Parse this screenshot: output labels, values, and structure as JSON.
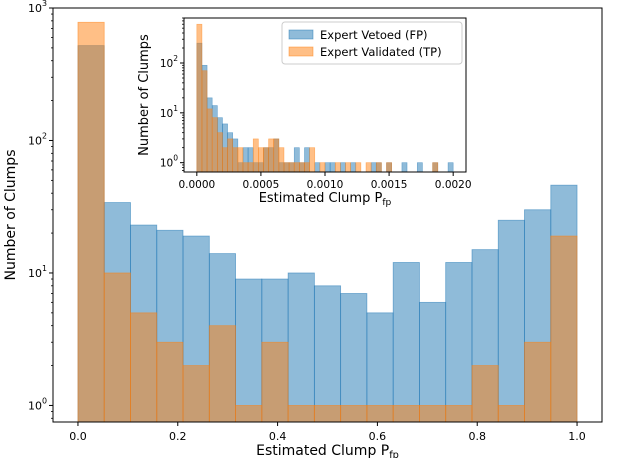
{
  "chart_data": [
    {
      "type": "bar",
      "subtype": "histogram",
      "panel": "main",
      "title": "",
      "xlabel": "Estimated Clump P",
      "xlabel_sub": "fp",
      "ylabel": "Number of Clumps",
      "xscale": "linear",
      "yscale": "log",
      "xlim": [
        -0.05,
        1.05
      ],
      "ylim": [
        0.75,
        1000
      ],
      "xticks": [
        0.0,
        0.2,
        0.4,
        0.6,
        0.8,
        1.0
      ],
      "xtick_labels": [
        "0.0",
        "0.2",
        "0.4",
        "0.6",
        "0.8",
        "1.0"
      ],
      "yticks": [
        1,
        10,
        100,
        1000
      ],
      "ytick_base": "10",
      "ytick_exponents": [
        "0",
        "1",
        "2",
        "3"
      ],
      "bin_edges": [
        0.0,
        0.0526,
        0.1053,
        0.1579,
        0.2105,
        0.2632,
        0.3158,
        0.3684,
        0.4211,
        0.4737,
        0.5263,
        0.5789,
        0.6316,
        0.6842,
        0.7368,
        0.7895,
        0.8421,
        0.8947,
        0.9474,
        1.0
      ],
      "series": [
        {
          "name": "Expert Vetoed (FP)",
          "color": "#1f77b4",
          "alpha": 0.5,
          "values": [
            520,
            34,
            23,
            21,
            19,
            14,
            9,
            9,
            10,
            8,
            7,
            5,
            12,
            6,
            12,
            15,
            25,
            30,
            46
          ]
        },
        {
          "name": "Expert Validated (TP)",
          "color": "#ff7f0e",
          "alpha": 0.5,
          "values": [
            780,
            10,
            5,
            3,
            2,
            4,
            1,
            3,
            1,
            1,
            1,
            1,
            1,
            1,
            1,
            2,
            1,
            3,
            19
          ]
        }
      ],
      "grid": false,
      "legend": "inset"
    },
    {
      "type": "bar",
      "subtype": "histogram",
      "panel": "inset",
      "title": "",
      "xlabel": "Estimated Clump P",
      "xlabel_sub": "fp",
      "ylabel": "Number of Clumps",
      "xscale": "linear",
      "yscale": "log",
      "xlim": [
        -0.0001,
        0.0021
      ],
      "ylim": [
        0.65,
        800
      ],
      "xticks": [
        0.0,
        0.0005,
        0.001,
        0.0015,
        0.002
      ],
      "xtick_labels": [
        "0.0000",
        "0.0005",
        "0.0010",
        "0.0015",
        "0.0020"
      ],
      "yticks": [
        1,
        10,
        100
      ],
      "ytick_base": "10",
      "ytick_exponents": [
        "0",
        "1",
        "2"
      ],
      "bin_range": [
        0.0,
        0.002
      ],
      "bins": 50,
      "series": [
        {
          "name": "Expert Vetoed (FP)",
          "color": "#1f77b4",
          "alpha": 0.5,
          "values": [
            250,
            90,
            20,
            14,
            8,
            6,
            4,
            3,
            1,
            2,
            2,
            1,
            1,
            2,
            2,
            3,
            1,
            1,
            1,
            2,
            1,
            2,
            0,
            1,
            0,
            1,
            1,
            0,
            1,
            0,
            1,
            0,
            0,
            0,
            1,
            1,
            0,
            1,
            0,
            0,
            1,
            0,
            0,
            1,
            0,
            0,
            1,
            0,
            0,
            1
          ]
        },
        {
          "name": "Expert Validated (TP)",
          "color": "#ff7f0e",
          "alpha": 0.5,
          "values": [
            600,
            70,
            12,
            8,
            4,
            2,
            3,
            2,
            2,
            1,
            1,
            3,
            2,
            2,
            3,
            3,
            2,
            1,
            1,
            1,
            1,
            1,
            2,
            0,
            1,
            0,
            0,
            1,
            0,
            1,
            0,
            1,
            0,
            1,
            0,
            1,
            0,
            1,
            0,
            0,
            0,
            0,
            0,
            0,
            0,
            0,
            1,
            0,
            0,
            0
          ]
        }
      ],
      "grid": false,
      "legend": "top-right"
    }
  ]
}
